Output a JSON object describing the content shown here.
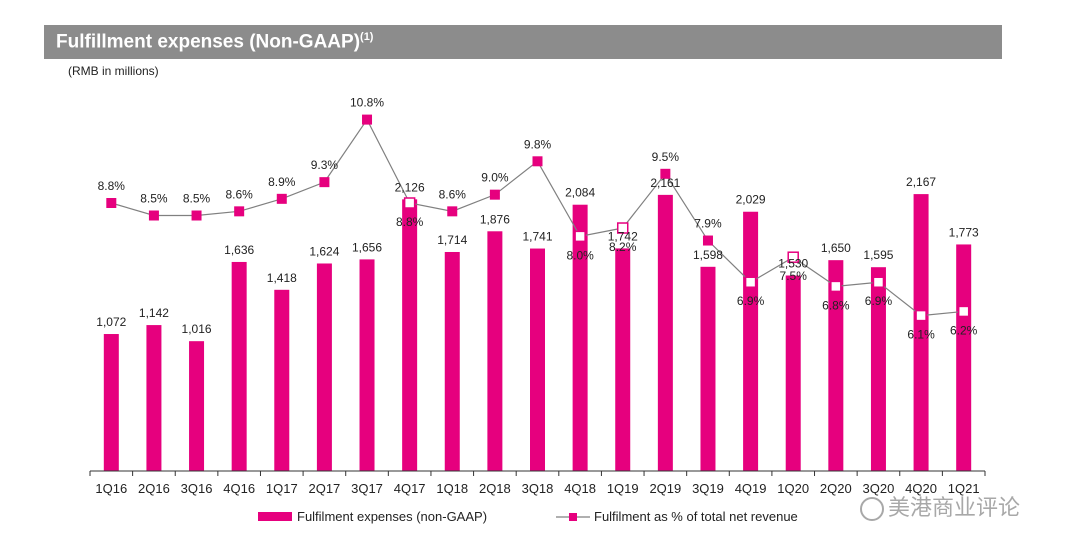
{
  "header": {
    "title": "Fulfillment expenses (Non-GAAP)",
    "title_sup": "(1)",
    "subtitle": "(RMB in millions)"
  },
  "colors": {
    "bar": "#e6007e",
    "line": "#808080",
    "marker": "#e6007e",
    "header_bg": "#8c8c8c"
  },
  "chart_data": {
    "type": "bar",
    "title": "Fulfillment expenses (Non-GAAP)",
    "ylabel": "RMB in millions",
    "ylim": [
      0,
      2700
    ],
    "y2lim": [
      0,
      12
    ],
    "categories": [
      "1Q16",
      "2Q16",
      "3Q16",
      "4Q16",
      "1Q17",
      "2Q17",
      "3Q17",
      "4Q17",
      "1Q18",
      "2Q18",
      "3Q18",
      "4Q18",
      "1Q19",
      "2Q19",
      "3Q19",
      "4Q19",
      "1Q20",
      "2Q20",
      "3Q20",
      "4Q20",
      "1Q21"
    ],
    "series": [
      {
        "name": "Fulfilment expenses (non-GAAP)",
        "type": "bar",
        "values": [
          1072,
          1142,
          1016,
          1636,
          1418,
          1624,
          1656,
          2126,
          1714,
          1876,
          1741,
          2084,
          1742,
          2161,
          1598,
          2029,
          1530,
          1650,
          1595,
          2167,
          1773
        ],
        "labels": [
          "1,072",
          "1,142",
          "1,016",
          "1,636",
          "1,418",
          "1,624",
          "1,656",
          "2,126",
          "1,714",
          "1,876",
          "1,741",
          "2,084",
          "1,742",
          "2,161",
          "1,598",
          "2,029",
          "1,530",
          "1,650",
          "1,595",
          "2,167",
          "1,773"
        ]
      },
      {
        "name": "Fulfilment as % of total net revenue",
        "type": "line",
        "values": [
          8.8,
          8.5,
          8.5,
          8.6,
          8.9,
          9.3,
          10.8,
          8.8,
          8.6,
          9.0,
          9.8,
          8.0,
          8.2,
          9.5,
          7.9,
          6.9,
          7.5,
          6.8,
          6.9,
          6.1,
          6.2
        ],
        "labels": [
          "8.8%",
          "8.5%",
          "8.5%",
          "8.6%",
          "8.9%",
          "9.3%",
          "10.8%",
          "8.8%",
          "8.6%",
          "9.0%",
          "9.8%",
          "8.0%",
          "8.2%",
          "9.5%",
          "7.9%",
          "6.9%",
          "7.5%",
          "6.8%",
          "6.9%",
          "6.1%",
          "6.2%"
        ]
      }
    ],
    "legend": [
      "Fulfilment expenses (non-GAAP)",
      "Fulfilment as % of total net revenue"
    ],
    "legend_position": "bottom"
  },
  "watermark": "美港商业评论"
}
